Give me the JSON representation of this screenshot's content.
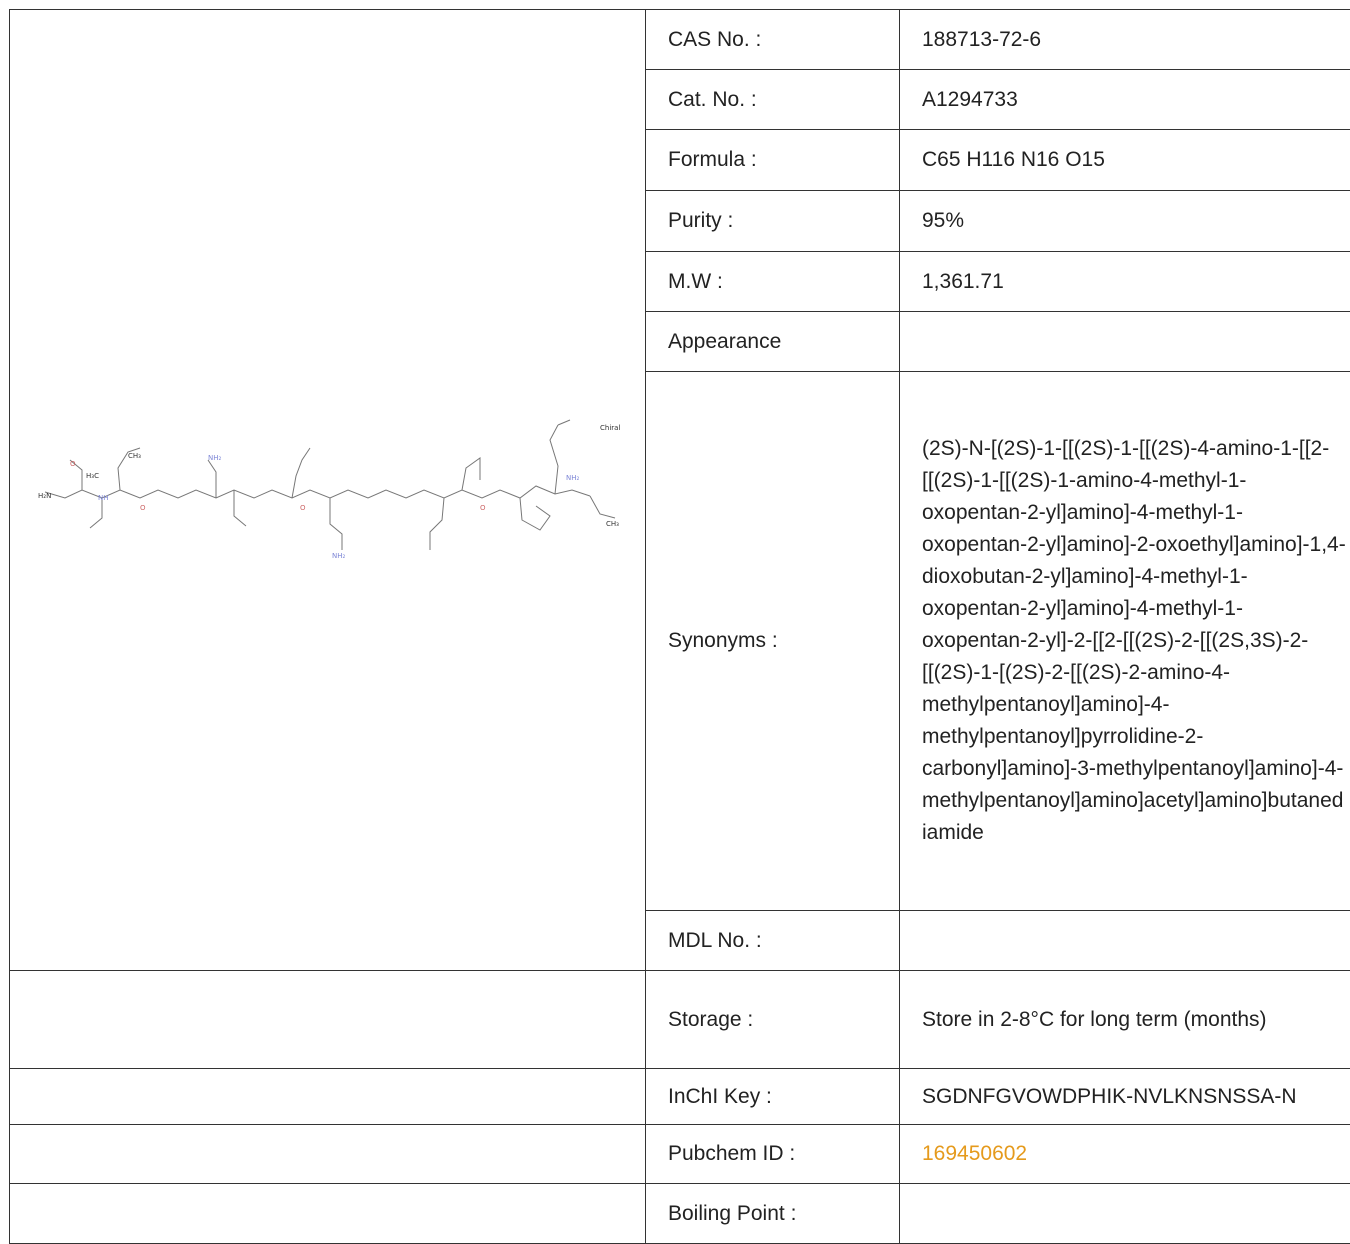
{
  "rows": [
    {
      "label": "CAS No. :",
      "value": "188713-72-6"
    },
    {
      "label": "Cat. No. :",
      "value": "A1294733"
    },
    {
      "label": "Formula :",
      "value": "C65 H116 N16 O15"
    },
    {
      "label": "Purity :",
      "value": "95%"
    },
    {
      "label": "M.W :",
      "value": "1,361.71"
    },
    {
      "label": "Appearance",
      "value": ""
    },
    {
      "label": "Synonyms :",
      "value": "(2S)-N-[(2S)-1-[[(2S)-1-[[(2S)-4-amino-1-[[2-[[(2S)-1-[[(2S)-1-amino-4-methyl-1-oxopentan-2-yl]amino]-4-methyl-1-oxopentan-2-yl]amino]-2-oxoethyl]amino]-1,4-dioxobutan-2-yl]amino]-4-methyl-1-oxopentan-2-yl]amino]-4-methyl-1-oxopentan-2-yl]-2-[[2-[[(2S)-2-[[(2S,3S)-2-[[(2S)-1-[(2S)-2-[[(2S)-2-amino-4-methylpentanoyl]amino]-4-methylpentanoyl]pyrrolidine-2-carbonyl]amino]-3-methylpentanoyl]amino]-4-methylpentanoyl]amino]acetyl]amino]butanediamide"
    },
    {
      "label": "MDL No. :",
      "value": ""
    },
    {
      "label": "Storage :",
      "value": "Store in 2-8°C for long term (months)"
    },
    {
      "label": "InChI Key :",
      "value": "SGDNFGVOWDPHIK-NVLKNSNSSA-N"
    },
    {
      "label": "Pubchem ID :",
      "value": "169450602"
    },
    {
      "label": "Boiling Point :",
      "value": ""
    }
  ],
  "structure": {
    "atom_labels": [
      "H₂N",
      "H₃C",
      "CH₃",
      "NH",
      "O",
      "NH₂",
      "Chiral",
      "NH₂",
      "CH₃"
    ],
    "chiral_label": "Chiral"
  },
  "colors": {
    "link": "#e59a1c",
    "border": "#333333",
    "nitrogen": "#7d86d6"
  }
}
